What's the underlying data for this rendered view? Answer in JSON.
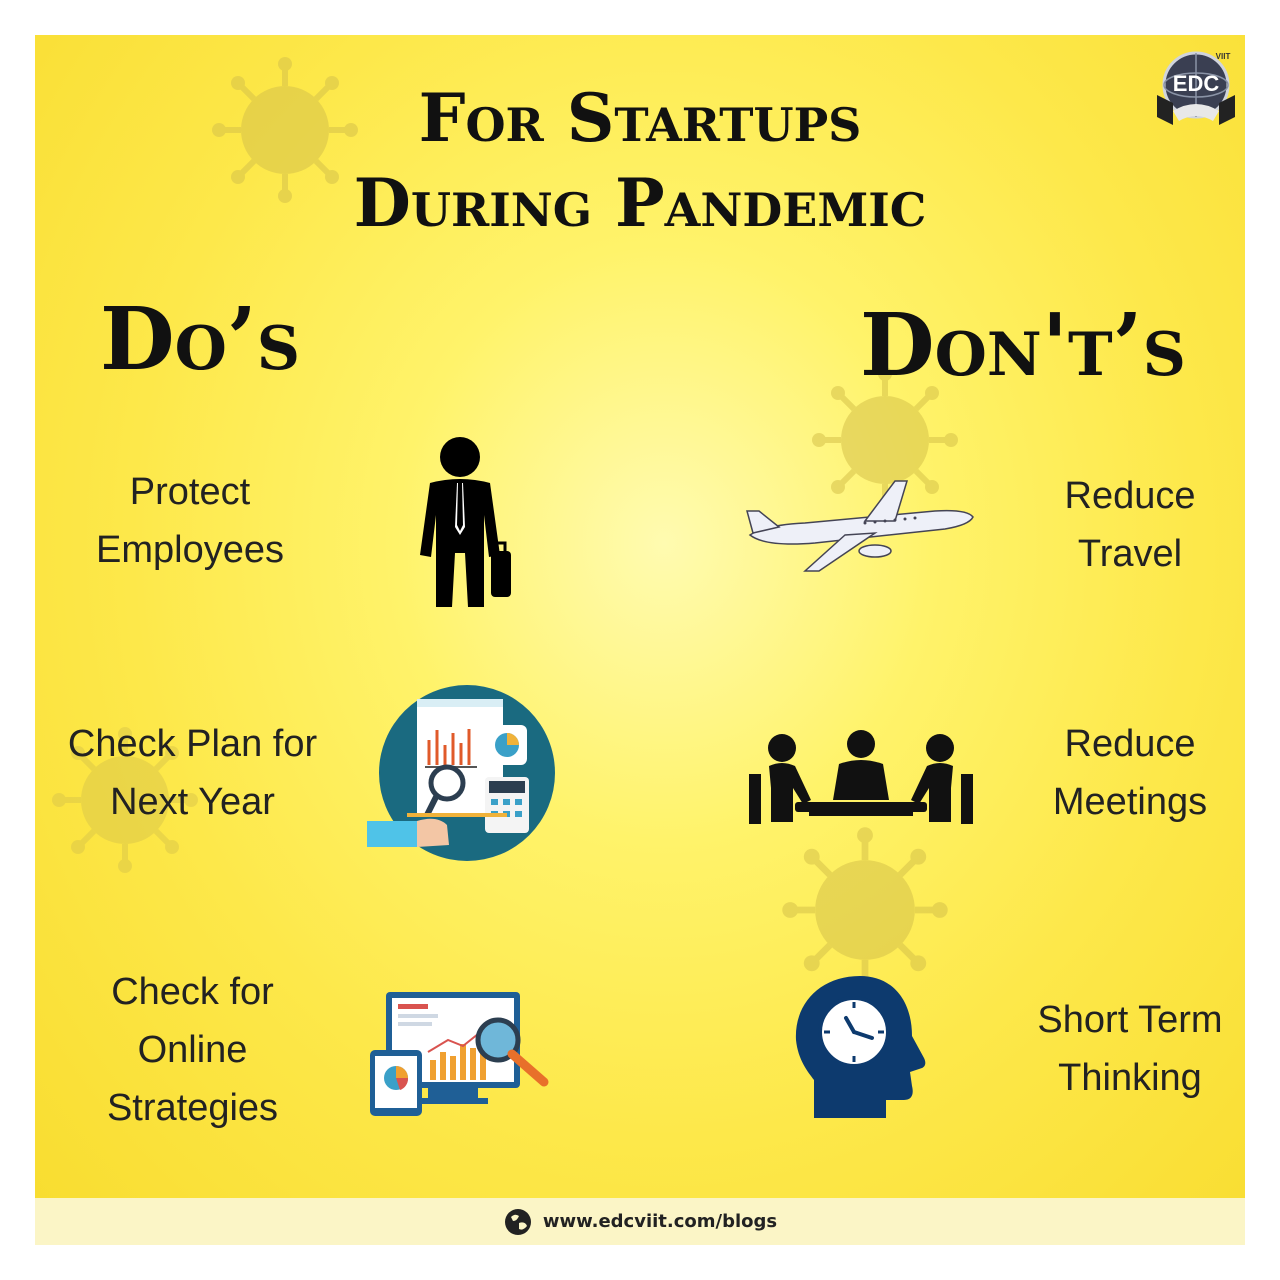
{
  "title": {
    "line1": "For Startups",
    "line2": "During Pandemic"
  },
  "logo": {
    "text": "EDC",
    "subtext": "VIIT"
  },
  "dos": {
    "heading": "Do’s",
    "items": [
      {
        "line1": "Protect",
        "line2": "Employees",
        "icon": "businessman-icon"
      },
      {
        "line1": "Check Plan for",
        "line2": "Next Year",
        "icon": "financial-report-icon"
      },
      {
        "line1": "Check for",
        "line2": "Online",
        "line3": "Strategies",
        "icon": "online-analytics-icon"
      }
    ]
  },
  "donts": {
    "heading": "Don't’s",
    "items": [
      {
        "line1": "Reduce",
        "line2": "Travel",
        "icon": "airplane-icon"
      },
      {
        "line1": "Reduce",
        "line2": "Meetings",
        "icon": "meeting-icon"
      },
      {
        "line1": "Short Term",
        "line2": "Thinking",
        "icon": "head-clock-icon"
      }
    ]
  },
  "footer": {
    "url": "www.edcviit.com/blogs",
    "icon": "globe-icon"
  },
  "colors": {
    "background": "#fde84a",
    "text": "#111111",
    "navy": "#0d3a6e",
    "teal": "#1a6a80"
  }
}
